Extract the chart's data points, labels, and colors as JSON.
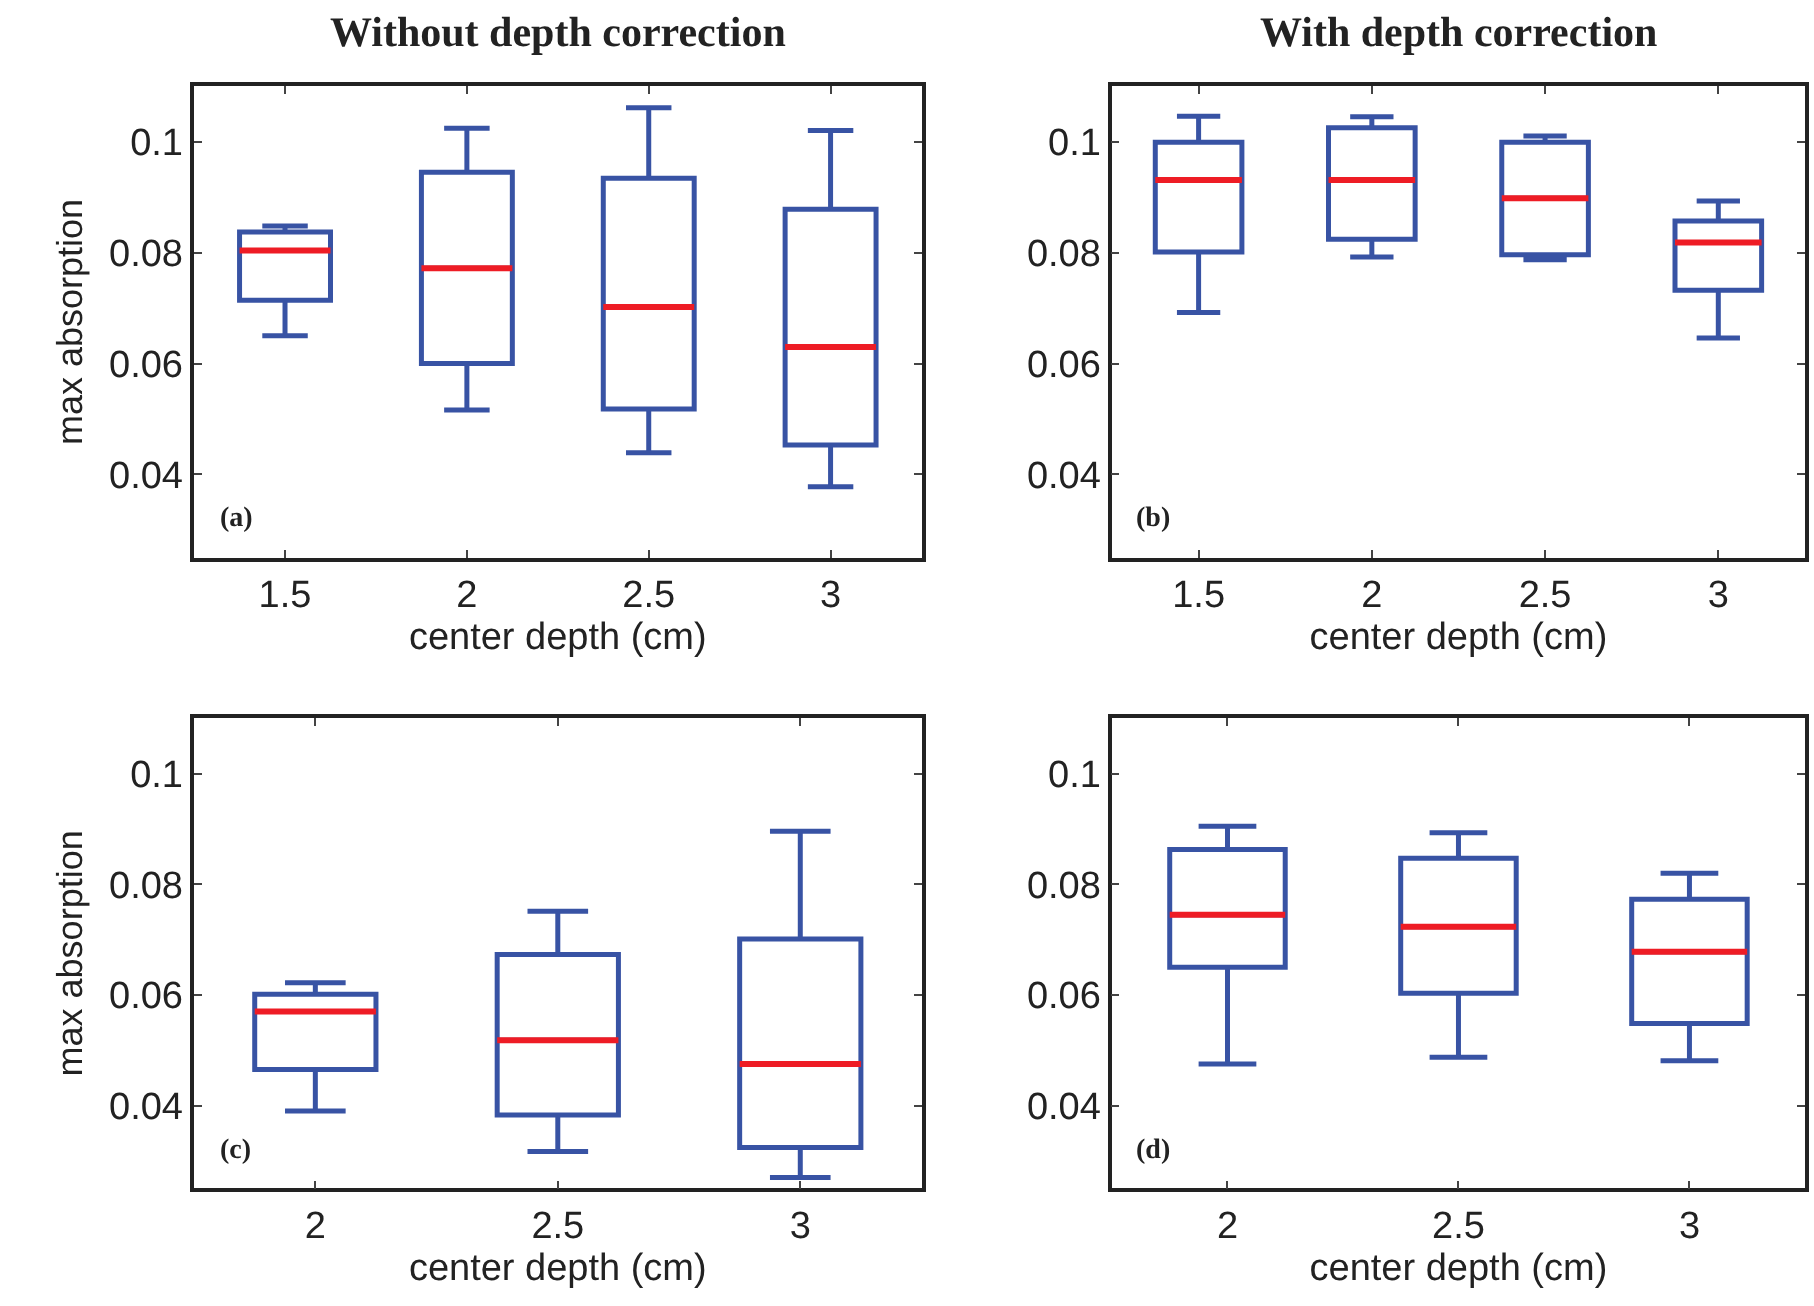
{
  "chart_data": [
    {
      "type": "box",
      "title": "Without depth correction",
      "xlabel": "center depth (cm)",
      "ylabel": "max absorption",
      "categories": [
        "1.5",
        "2",
        "2.5",
        "3"
      ],
      "ylim": [
        0.025,
        0.11
      ],
      "yticks": [
        0.04,
        0.06,
        0.08,
        0.1
      ],
      "annotations": [
        "(a)"
      ],
      "series": [
        {
          "color": "#3853a4",
          "boxes": [
            {
              "low": 0.065,
              "q1": 0.0714,
              "median": 0.0804,
              "q3": 0.0837,
              "high": 0.0848
            },
            {
              "low": 0.0516,
              "q1": 0.06,
              "median": 0.0772,
              "q3": 0.0945,
              "high": 0.1024
            },
            {
              "low": 0.0439,
              "q1": 0.0518,
              "median": 0.0702,
              "q3": 0.0934,
              "high": 0.1061
            },
            {
              "low": 0.0378,
              "q1": 0.0453,
              "median": 0.063,
              "q3": 0.0878,
              "high": 0.102
            }
          ]
        }
      ]
    },
    {
      "type": "box",
      "title": "With depth correction",
      "xlabel": "center depth (cm)",
      "categories": [
        "1.5",
        "2",
        "2.5",
        "3"
      ],
      "ylim": [
        0.025,
        0.11
      ],
      "yticks": [
        0.04,
        0.06,
        0.08,
        0.1
      ],
      "annotations": [
        "(b)"
      ],
      "series": [
        {
          "color": "#3853a4",
          "boxes": [
            {
              "low": 0.0692,
              "q1": 0.0801,
              "median": 0.0931,
              "q3": 0.0999,
              "high": 0.1046
            },
            {
              "low": 0.0792,
              "q1": 0.0824,
              "median": 0.0931,
              "q3": 0.1025,
              "high": 0.1045
            },
            {
              "low": 0.0787,
              "q1": 0.0796,
              "median": 0.0898,
              "q3": 0.0999,
              "high": 0.101
            },
            {
              "low": 0.0646,
              "q1": 0.0732,
              "median": 0.0818,
              "q3": 0.0857,
              "high": 0.0893
            }
          ]
        }
      ]
    },
    {
      "type": "box",
      "xlabel": "center depth (cm)",
      "ylabel": "max absorption",
      "categories": [
        "2",
        "2.5",
        "3"
      ],
      "ylim": [
        0.025,
        0.11
      ],
      "yticks": [
        0.04,
        0.06,
        0.08,
        0.1
      ],
      "annotations": [
        "(c)"
      ],
      "series": [
        {
          "color": "#3853a4",
          "boxes": [
            {
              "low": 0.039,
              "q1": 0.0465,
              "median": 0.057,
              "q3": 0.0601,
              "high": 0.0622
            },
            {
              "low": 0.0317,
              "q1": 0.0383,
              "median": 0.0518,
              "q3": 0.0673,
              "high": 0.0751
            },
            {
              "low": 0.027,
              "q1": 0.0324,
              "median": 0.0475,
              "q3": 0.0701,
              "high": 0.0896
            }
          ]
        }
      ]
    },
    {
      "type": "box",
      "xlabel": "center depth (cm)",
      "categories": [
        "2",
        "2.5",
        "3"
      ],
      "ylim": [
        0.025,
        0.11
      ],
      "yticks": [
        0.04,
        0.06,
        0.08,
        0.1
      ],
      "annotations": [
        "(d)"
      ],
      "series": [
        {
          "color": "#3853a4",
          "boxes": [
            {
              "low": 0.0475,
              "q1": 0.065,
              "median": 0.0745,
              "q3": 0.0863,
              "high": 0.0905
            },
            {
              "low": 0.0487,
              "q1": 0.0603,
              "median": 0.0723,
              "q3": 0.0847,
              "high": 0.0893
            },
            {
              "low": 0.0481,
              "q1": 0.0548,
              "median": 0.0678,
              "q3": 0.0773,
              "high": 0.082
            }
          ]
        }
      ]
    }
  ]
}
